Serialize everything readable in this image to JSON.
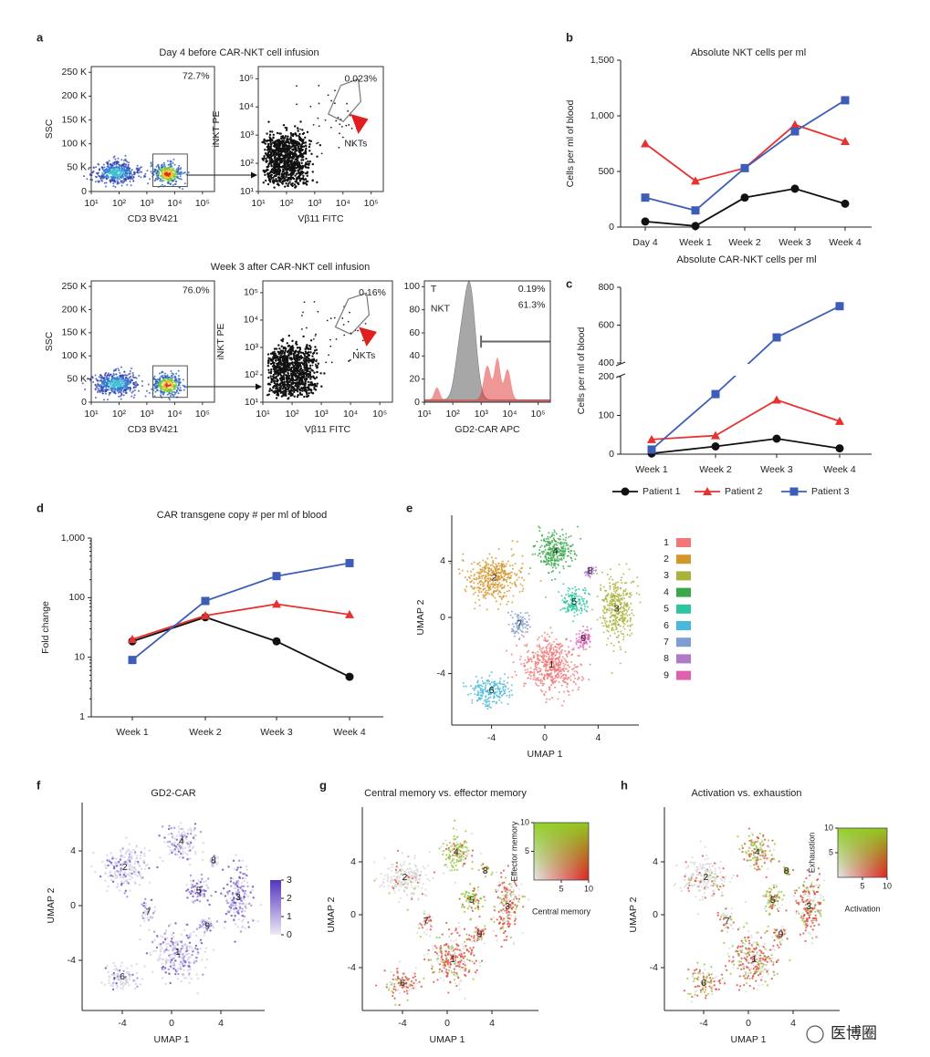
{
  "panel_labels": [
    "a",
    "b",
    "c",
    "d",
    "e",
    "f",
    "g",
    "h"
  ],
  "flow": {
    "rows": [
      {
        "title": "Day 4 before CAR-NKT cell infusion",
        "plots": [
          {
            "kind": "density",
            "xlabel": "CD3 BV421",
            "ylabel": "SSC",
            "log_x": true,
            "log_y": false,
            "xlim": [
              10,
              270000
            ],
            "xticks": [
              {
                "value": 10,
                "label": "10¹"
              },
              {
                "value": 100,
                "label": "10²"
              },
              {
                "value": 1000,
                "label": "10³"
              },
              {
                "value": 10000,
                "label": "10⁴"
              },
              {
                "value": 100000,
                "label": "10⁵"
              }
            ],
            "ylim": [
              0,
              262000
            ],
            "yticks": [
              0,
              {
                "value": 50000,
                "label": "50 K"
              },
              {
                "value": 100000,
                "label": "100 K"
              },
              {
                "value": 150000,
                "label": "150 K"
              },
              {
                "value": 200000,
                "label": "200 K"
              },
              {
                "value": 250000,
                "label": "250 K"
              }
            ],
            "gate_label": "72.7%"
          },
          {
            "kind": "dot",
            "xlabel": "Vβ11 FITC",
            "ylabel": "iNKT PE",
            "log_x": true,
            "log_y": true,
            "xlim": [
              10,
              270000
            ],
            "xticks": [
              {
                "value": 10,
                "label": "10¹"
              },
              {
                "value": 100,
                "label": "10²"
              },
              {
                "value": 1000,
                "label": "10³"
              },
              {
                "value": 10000,
                "label": "10⁴"
              },
              {
                "value": 100000,
                "label": "10⁵"
              }
            ],
            "ylim": [
              10,
              270000
            ],
            "yticks": [
              {
                "value": 10,
                "label": "10¹"
              },
              {
                "value": 100,
                "label": "10²"
              },
              {
                "value": 1000,
                "label": "10³"
              },
              {
                "value": 10000,
                "label": "10⁴"
              },
              {
                "value": 100000,
                "label": "10⁵"
              }
            ],
            "gate_label": "0.023%",
            "population": "NKTs"
          }
        ]
      },
      {
        "title": "Week 3 after CAR-NKT cell infusion",
        "plots": [
          {
            "kind": "density",
            "xlabel": "CD3 BV421",
            "ylabel": "SSC",
            "log_x": true,
            "log_y": false,
            "xlim": [
              10,
              270000
            ],
            "xticks": [
              {
                "value": 10,
                "label": "10¹"
              },
              {
                "value": 100,
                "label": "10²"
              },
              {
                "value": 1000,
                "label": "10³"
              },
              {
                "value": 10000,
                "label": "10⁴"
              },
              {
                "value": 100000,
                "label": "10⁵"
              }
            ],
            "ylim": [
              0,
              262000
            ],
            "yticks": [
              0,
              {
                "value": 50000,
                "label": "50 K"
              },
              {
                "value": 100000,
                "label": "100 K"
              },
              {
                "value": 150000,
                "label": "150 K"
              },
              {
                "value": 200000,
                "label": "200 K"
              },
              {
                "value": 250000,
                "label": "250 K"
              }
            ],
            "gate_label": "76.0%"
          },
          {
            "kind": "dot",
            "xlabel": "Vβ11 FITC",
            "ylabel": "iNKT PE",
            "log_x": true,
            "log_y": true,
            "xlim": [
              10,
              270000
            ],
            "xticks": [
              {
                "value": 10,
                "label": "10¹"
              },
              {
                "value": 100,
                "label": "10²"
              },
              {
                "value": 1000,
                "label": "10³"
              },
              {
                "value": 10000,
                "label": "10⁴"
              },
              {
                "value": 100000,
                "label": "10⁵"
              }
            ],
            "ylim": [
              10,
              270000
            ],
            "yticks": [
              {
                "value": 10,
                "label": "10¹"
              },
              {
                "value": 100,
                "label": "10²"
              },
              {
                "value": 1000,
                "label": "10³"
              },
              {
                "value": 10000,
                "label": "10⁴"
              },
              {
                "value": 100000,
                "label": "10⁵"
              }
            ],
            "gate_label": "0.16%",
            "population": "NKTs"
          },
          {
            "kind": "histogram",
            "xlabel": "GD2-CAR APC",
            "log_x": true,
            "log_y": false,
            "xlim": [
              10,
              270000
            ],
            "xticks": [
              {
                "value": 10,
                "label": "10¹"
              },
              {
                "value": 100,
                "label": "10²"
              },
              {
                "value": 1000,
                "label": "10³"
              },
              {
                "value": 10000,
                "label": "10⁴"
              },
              {
                "value": 100000,
                "label": "10⁵"
              }
            ],
            "ylim": [
              0,
              105
            ],
            "yticks": [
              0,
              20,
              40,
              60,
              80,
              100
            ],
            "series_labels": [
              "T",
              "NKT"
            ],
            "gate_labels": [
              "0.19%",
              "61.3%"
            ],
            "colors": [
              "#8a8a8a",
              "#e03030"
            ]
          }
        ]
      }
    ]
  },
  "chart_data": [
    {
      "type": "line",
      "title": "Absolute NKT cells per ml",
      "ylabel": "Cells per ml of blood",
      "log_y": false,
      "categories": [
        "Day 4",
        "Week 1",
        "Week 2",
        "Week 3",
        "Week 4"
      ],
      "ylim": [
        0,
        1500
      ],
      "yticks": [
        0,
        500,
        {
          "value": 1000,
          "label": "1,000"
        },
        {
          "value": 1500,
          "label": "1,500"
        }
      ],
      "series": [
        {
          "color": "#111111",
          "marker": "circle",
          "values": [
            50,
            10,
            265,
            345,
            210
          ]
        },
        {
          "color": "#e8312f",
          "marker": "triangle",
          "values": [
            750,
            415,
            530,
            920,
            770
          ]
        },
        {
          "color": "#3d5db8",
          "marker": "square",
          "values": [
            265,
            150,
            530,
            860,
            1140
          ]
        }
      ]
    },
    {
      "type": "line",
      "title": "Absolute CAR-NKT cells per ml",
      "ylabel": "Cells per ml of blood",
      "log_y": false,
      "categories": [
        "Week 1",
        "Week 2",
        "Week 3",
        "Week 4"
      ],
      "ylim": [
        0,
        800
      ],
      "y_break": [
        200,
        400
      ],
      "yticks": [
        0,
        100,
        200,
        400,
        600,
        800
      ],
      "legend": "bottom",
      "series": [
        {
          "name": "Patient 1",
          "color": "#111111",
          "marker": "circle",
          "values": [
            2,
            20,
            40,
            15
          ]
        },
        {
          "name": "Patient 2",
          "color": "#e8312f",
          "marker": "triangle",
          "values": [
            38,
            48,
            140,
            85
          ]
        },
        {
          "name": "Patient 3",
          "color": "#3d5db8",
          "marker": "square",
          "values": [
            12,
            155,
            535,
            700
          ]
        }
      ]
    },
    {
      "type": "line",
      "title": "CAR transgene copy # per ml of blood",
      "ylabel": "Fold change",
      "log_y": true,
      "categories": [
        "Week 1",
        "Week 2",
        "Week 3",
        "Week 4"
      ],
      "ylim": [
        1,
        1000
      ],
      "yticks": [
        1,
        10,
        100,
        {
          "value": 1000,
          "label": "1,000"
        }
      ],
      "series": [
        {
          "color": "#111111",
          "marker": "circle",
          "values": [
            18.5,
            47,
            18.5,
            4.7
          ]
        },
        {
          "color": "#e8312f",
          "marker": "triangle",
          "values": [
            20,
            50,
            78,
            52
          ]
        },
        {
          "color": "#3d5db8",
          "marker": "square",
          "values": [
            9,
            88,
            230,
            380
          ]
        }
      ]
    }
  ],
  "umap": {
    "xlabel": "UMAP 1",
    "ylabel": "UMAP 2",
    "ticks": [
      -4,
      0,
      4
    ],
    "clusters": [
      "1",
      "2",
      "3",
      "4",
      "5",
      "6",
      "7",
      "8",
      "9"
    ],
    "cluster_colors": [
      "#f07878",
      "#d4952a",
      "#aab23a",
      "#3aa84a",
      "#2ec4a0",
      "#4ab8d8",
      "#7f9ed0",
      "#b07ac8",
      "#e060b0"
    ],
    "f": {
      "title": "GD2-CAR",
      "colorbar_ticks": [
        0,
        1,
        2,
        3
      ]
    },
    "g": {
      "title": "Central memory vs. effector memory",
      "inset": {
        "xlabel": "Central memory",
        "ylabel": "Effector memory",
        "xticks": [
          5,
          10
        ],
        "yticks": [
          5,
          10
        ]
      }
    },
    "h": {
      "title": "Activation vs. exhaustion",
      "inset": {
        "xlabel": "Activation",
        "ylabel": "Exhaustion",
        "xticks": [
          5,
          10
        ],
        "yticks": [
          5,
          10
        ]
      }
    }
  },
  "watermark": "医博圈"
}
